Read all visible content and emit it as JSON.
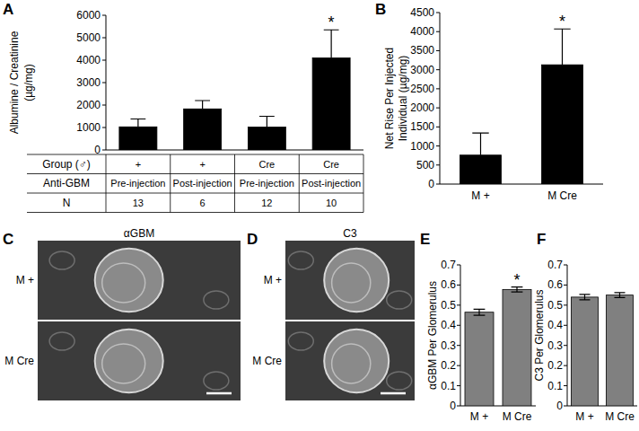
{
  "chart_data": [
    {
      "panel": "A",
      "type": "bar",
      "categories": [
        null,
        null,
        null,
        null
      ],
      "values": [
        1030,
        1830,
        1020,
        4100
      ],
      "errors": [
        350,
        370,
        480,
        1250
      ],
      "color": "#000000",
      "ylim": [
        0,
        6000
      ],
      "yticks": [
        0,
        1000,
        2000,
        3000,
        4000,
        5000,
        6000
      ],
      "y_label": [
        "Albumine / Creatinine",
        "(µg/mg)"
      ],
      "x_table": {
        "rows": [
          {
            "label": "Group (♂)",
            "cells": [
              "+",
              "+",
              "Cre",
              "Cre"
            ]
          },
          {
            "label": "Anti-GBM",
            "cells": [
              "Pre-injection",
              "Post-injection",
              "Pre-injection",
              "Post-injection"
            ]
          },
          {
            "label": "N",
            "cells": [
              13,
              6,
              12,
              10
            ]
          }
        ]
      },
      "annotations": [
        {
          "text": "*",
          "category": 3
        }
      ]
    },
    {
      "panel": "B",
      "type": "bar",
      "categories": [
        "M +",
        "M Cre"
      ],
      "values": [
        760,
        3130
      ],
      "errors": [
        580,
        940
      ],
      "color": "#000000",
      "ylim": [
        0,
        4500
      ],
      "yticks": [
        0,
        500,
        1000,
        1500,
        2000,
        2500,
        3000,
        3500,
        4000,
        4500
      ],
      "y_label": [
        "Net Rise Per Injected",
        "Individual (µg/mg)"
      ],
      "annotations": [
        {
          "text": "*",
          "category": 1
        }
      ]
    },
    {
      "panel": "E",
      "type": "bar",
      "categories": [
        "M +",
        "M Cre"
      ],
      "values": [
        0.465,
        0.578
      ],
      "errors": [
        0.015,
        0.012
      ],
      "color": "#808080",
      "ylim": [
        0,
        0.7
      ],
      "yticks": [
        0,
        0.1,
        0.2,
        0.3,
        0.4,
        0.5,
        0.6,
        0.7
      ],
      "y_label": [
        "αGBM Per Glomerulus"
      ],
      "annotations": [
        {
          "text": "*",
          "category": 1
        }
      ]
    },
    {
      "panel": "F",
      "type": "bar",
      "categories": [
        "M +",
        "M Cre"
      ],
      "values": [
        0.54,
        0.55
      ],
      "errors": [
        0.013,
        0.012
      ],
      "color": "#808080",
      "ylim": [
        0,
        0.7
      ],
      "yticks": [
        0,
        0.1,
        0.2,
        0.3,
        0.4,
        0.5,
        0.6,
        0.7
      ],
      "y_label": [
        "C3 Per Glomerulus"
      ]
    }
  ],
  "images": [
    {
      "panel": "C",
      "title": "αGBM",
      "rows": [
        "M +",
        "M Cre"
      ]
    },
    {
      "panel": "D",
      "title": "C3",
      "rows": [
        "M +",
        "M Cre"
      ]
    }
  ]
}
